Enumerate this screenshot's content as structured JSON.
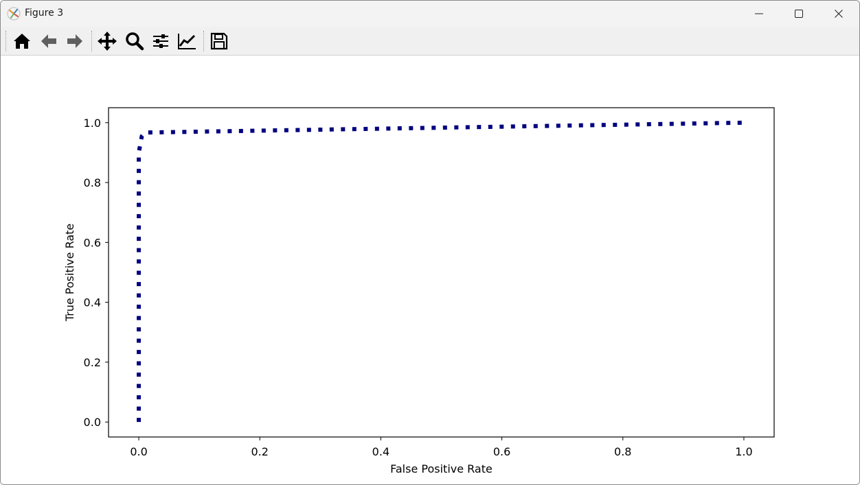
{
  "window": {
    "title": "Figure 3"
  },
  "toolbar": {
    "buttons": [
      {
        "name": "home-icon"
      },
      {
        "name": "back-arrow-icon"
      },
      {
        "name": "forward-arrow-icon"
      },
      {
        "name": "pan-icon"
      },
      {
        "name": "zoom-icon"
      },
      {
        "name": "configure-subplots-icon"
      },
      {
        "name": "edit-axes-icon"
      },
      {
        "name": "save-icon"
      }
    ]
  },
  "colors": {
    "line": "#000080",
    "axes": "#000000",
    "background": "#ffffff"
  },
  "chart_data": {
    "type": "line",
    "title": "",
    "xlabel": "False Positive Rate",
    "ylabel": "True Positive Rate",
    "xlim": [
      -0.05,
      1.05
    ],
    "ylim": [
      -0.05,
      1.05
    ],
    "xticks": [
      0.0,
      0.2,
      0.4,
      0.6,
      0.8,
      1.0
    ],
    "xtick_labels": [
      "0.0",
      "0.2",
      "0.4",
      "0.6",
      "0.8",
      "1.0"
    ],
    "yticks": [
      0.0,
      0.2,
      0.4,
      0.6,
      0.8,
      1.0
    ],
    "ytick_labels": [
      "0.0",
      "0.2",
      "0.4",
      "0.6",
      "0.8",
      "1.0"
    ],
    "grid": false,
    "line_style": "dotted",
    "series": [
      {
        "x": [
          0.0,
          0.0,
          0.005,
          0.01,
          1.0
        ],
        "y": [
          0.0,
          0.9,
          0.955,
          0.967,
          1.0
        ]
      }
    ]
  }
}
